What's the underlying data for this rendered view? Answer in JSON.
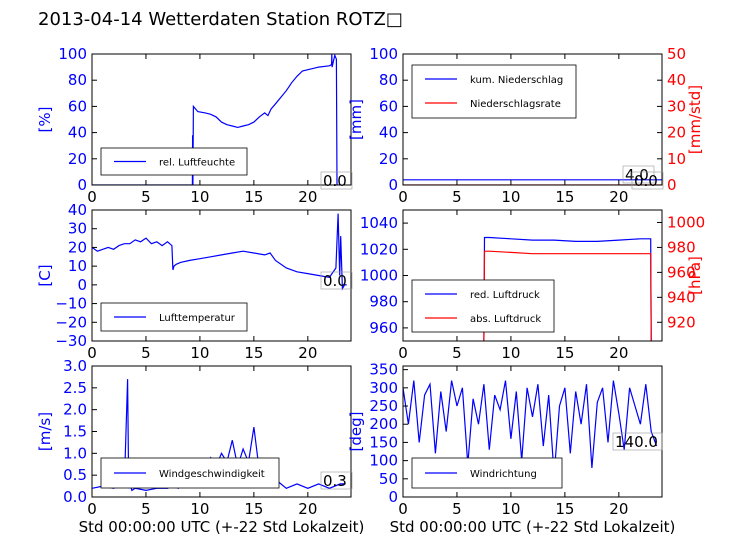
{
  "title": "2013-04-14 Wetterdaten Station ROTZ□",
  "colors": {
    "blue": "#0000ff",
    "red": "#ff0000",
    "axis": "#000000"
  },
  "xlabel": "Std 00:00:00 UTC (+-22 Std Lokalzeit)",
  "chart_data": [
    {
      "type": "line",
      "ylabel": "[%]",
      "xlim": [
        0,
        24
      ],
      "ylim": [
        0,
        100
      ],
      "xticks": [
        "0",
        "5",
        "10",
        "15",
        "20"
      ],
      "yticks": [
        "0",
        "20",
        "40",
        "60",
        "80",
        "100"
      ],
      "legend": [
        "rel. Luftfeuchte"
      ],
      "legend_position": "lower-left",
      "value_label": "0.0",
      "series": [
        {
          "name": "rel. Luftfeuchte",
          "color": "#0000ff",
          "x": [
            0,
            9.3,
            9.32,
            9.35,
            9.4,
            9.8,
            10.5,
            11,
            11.5,
            12,
            12.5,
            13,
            13.5,
            14,
            14.5,
            15,
            15.5,
            16,
            16.3,
            16.6,
            17,
            17.5,
            18,
            18.5,
            19,
            19.5,
            20,
            20.5,
            21,
            22,
            22.2,
            22.22,
            22.25,
            22.5,
            22.65,
            22.7,
            22.75,
            23
          ],
          "y": [
            0,
            0,
            38,
            0,
            60,
            56,
            55,
            54,
            52,
            48,
            46,
            45,
            44,
            45,
            46,
            48,
            52,
            55,
            53,
            58,
            62,
            67,
            72,
            78,
            83,
            87,
            88,
            89,
            90,
            91,
            92,
            100,
            90,
            99,
            96,
            0,
            0,
            0
          ]
        }
      ]
    },
    {
      "type": "line",
      "ylabel": "[mm]",
      "y2label": "[mm/std]",
      "xlim": [
        0,
        24
      ],
      "ylim": [
        0,
        100
      ],
      "y2lim": [
        0,
        50
      ],
      "xticks": [
        "0",
        "5",
        "10",
        "15",
        "20"
      ],
      "yticks": [
        "0",
        "20",
        "40",
        "60",
        "80",
        "100"
      ],
      "y2ticks": [
        "0",
        "10",
        "20",
        "30",
        "40",
        "50"
      ],
      "legend": [
        "kum. Niederschlag",
        "Niederschlagsrate"
      ],
      "legend_position": "upper-left",
      "value_label_1": "4.0",
      "value_label_2": "0.0",
      "series": [
        {
          "name": "kum. Niederschlag",
          "color": "#0000ff",
          "x": [
            0,
            24
          ],
          "y": [
            4,
            4
          ]
        },
        {
          "name": "Niederschlagsrate",
          "color": "#ff0000",
          "x": [
            0,
            24
          ],
          "y": [
            0,
            0
          ]
        }
      ]
    },
    {
      "type": "line",
      "ylabel": "[C]",
      "xlim": [
        0,
        24
      ],
      "ylim": [
        -30,
        40
      ],
      "xticks": [
        "0",
        "5",
        "10",
        "15",
        "20"
      ],
      "yticks": [
        "−30",
        "−20",
        "−10",
        "0",
        "10",
        "20",
        "30",
        "40"
      ],
      "legend": [
        "Lufttemperatur"
      ],
      "legend_position": "lower-left",
      "value_label": "0.0",
      "series": [
        {
          "name": "Lufttemperatur",
          "color": "#0000ff",
          "x": [
            0,
            0.5,
            1,
            1.5,
            2,
            2.5,
            3,
            3.5,
            4,
            4.5,
            5,
            5.5,
            6,
            6.5,
            7,
            7.4,
            7.5,
            7.6,
            7.8,
            8.2,
            9,
            10,
            11,
            12,
            13,
            14,
            15,
            16,
            16.5,
            17,
            18,
            19,
            20,
            21,
            22,
            22.6,
            22.8,
            22.95,
            23.05,
            23.2,
            23.4,
            23.6
          ],
          "y": [
            20,
            18,
            19,
            20,
            19,
            21,
            22,
            22,
            24,
            23,
            25,
            22,
            23,
            21,
            23,
            21,
            8,
            10,
            11,
            12,
            13,
            14,
            15,
            16,
            17,
            18,
            17,
            16,
            17,
            13,
            9,
            7,
            6,
            5,
            4,
            9,
            38,
            5,
            26,
            -2,
            0,
            0
          ]
        }
      ]
    },
    {
      "type": "line",
      "ylabel": "",
      "y2label": "[hPa]",
      "xlim": [
        0,
        24
      ],
      "ylim": [
        950,
        1050
      ],
      "y2lim": [
        905,
        1010
      ],
      "xticks": [
        "0",
        "5",
        "10",
        "15",
        "20"
      ],
      "yticks": [
        "960",
        "980",
        "1000",
        "1020",
        "1040"
      ],
      "y2ticks": [
        "920",
        "940",
        "960",
        "980",
        "1000"
      ],
      "legend": [
        "red. Luftdruck",
        "abs. Luftdruck"
      ],
      "legend_position": "lower-left",
      "series": [
        {
          "name": "red. Luftdruck",
          "color": "#0000ff",
          "x": [
            7.5,
            7.55,
            8,
            10,
            12,
            14,
            16,
            18,
            20,
            22,
            22.95,
            23,
            23.05
          ],
          "y": [
            950,
            1029,
            1029,
            1028,
            1027,
            1027,
            1026,
            1026,
            1027,
            1028,
            1028,
            950,
            950
          ]
        },
        {
          "name": "abs. Luftdruck",
          "color": "#ff0000",
          "x": [
            7.5,
            7.55,
            8,
            10,
            12,
            14,
            16,
            18,
            20,
            22,
            22.95,
            23,
            23.05
          ],
          "y": [
            905,
            977,
            977,
            976,
            975,
            975,
            975,
            975,
            975,
            975,
            975,
            905,
            905
          ]
        }
      ]
    },
    {
      "type": "line",
      "ylabel": "[m/s]",
      "xlim": [
        0,
        24
      ],
      "ylim": [
        0,
        3
      ],
      "xticks": [
        "0",
        "5",
        "10",
        "15",
        "20"
      ],
      "yticks": [
        "0.0",
        "0.5",
        "1.0",
        "1.5",
        "2.0",
        "2.5",
        "3.0"
      ],
      "legend": [
        "Windgeschwindigkeit"
      ],
      "legend_position": "lower-left",
      "value_label": "0.3",
      "series": [
        {
          "name": "Windgeschwindigkeit",
          "color": "#0000ff",
          "x": [
            0,
            1,
            2,
            3,
            3.3,
            3.4,
            3.5,
            3.7,
            4,
            5,
            6,
            7,
            7.5,
            8,
            8.5,
            9,
            9.5,
            10,
            10.5,
            11,
            11.5,
            12,
            12.5,
            13,
            13.5,
            14,
            14.5,
            15,
            15.5,
            16,
            16.5,
            17,
            18,
            19,
            20,
            21,
            22,
            23,
            23.5
          ],
          "y": [
            0.2,
            0.25,
            0.2,
            0.3,
            2.7,
            0.2,
            0.3,
            0.15,
            0.2,
            0.15,
            0.2,
            0.2,
            0.25,
            0.2,
            0.4,
            0.6,
            0.5,
            0.8,
            0.6,
            0.9,
            0.7,
            1.0,
            0.8,
            1.3,
            0.7,
            1.1,
            0.8,
            1.6,
            0.6,
            0.8,
            0.5,
            0.4,
            0.2,
            0.3,
            0.2,
            0.3,
            0.2,
            0.3,
            0.3
          ]
        }
      ]
    },
    {
      "type": "line",
      "ylabel": "[deg]",
      "xlim": [
        0,
        24
      ],
      "ylim": [
        0,
        360
      ],
      "xticks": [
        "0",
        "5",
        "10",
        "15",
        "20"
      ],
      "yticks": [
        "0",
        "50",
        "100",
        "150",
        "200",
        "250",
        "300",
        "350"
      ],
      "legend": [
        "Windrichtung"
      ],
      "legend_position": "lower-left",
      "value_label": "140.0",
      "series": [
        {
          "name": "Windrichtung",
          "color": "#0000ff",
          "x": [
            0,
            0.5,
            1,
            1.5,
            2,
            2.5,
            3,
            3.5,
            4,
            4.5,
            5,
            5.5,
            6,
            6.5,
            7,
            7.5,
            8,
            8.5,
            9,
            9.5,
            10,
            10.5,
            11,
            11.5,
            12,
            12.5,
            13,
            13.5,
            14,
            14.5,
            15,
            15.5,
            16,
            16.5,
            17,
            17.5,
            18,
            18.5,
            19,
            19.5,
            20,
            20.5,
            21,
            21.5,
            22,
            22.5,
            23,
            23.5
          ],
          "y": [
            300,
            200,
            320,
            150,
            280,
            310,
            120,
            290,
            180,
            320,
            250,
            300,
            90,
            270,
            200,
            310,
            130,
            280,
            240,
            320,
            160,
            290,
            100,
            300,
            220,
            310,
            140,
            280,
            60,
            250,
            300,
            120,
            290,
            200,
            310,
            80,
            260,
            300,
            150,
            320,
            230,
            130,
            300,
            250,
            200,
            310,
            180,
            140
          ]
        }
      ]
    }
  ]
}
